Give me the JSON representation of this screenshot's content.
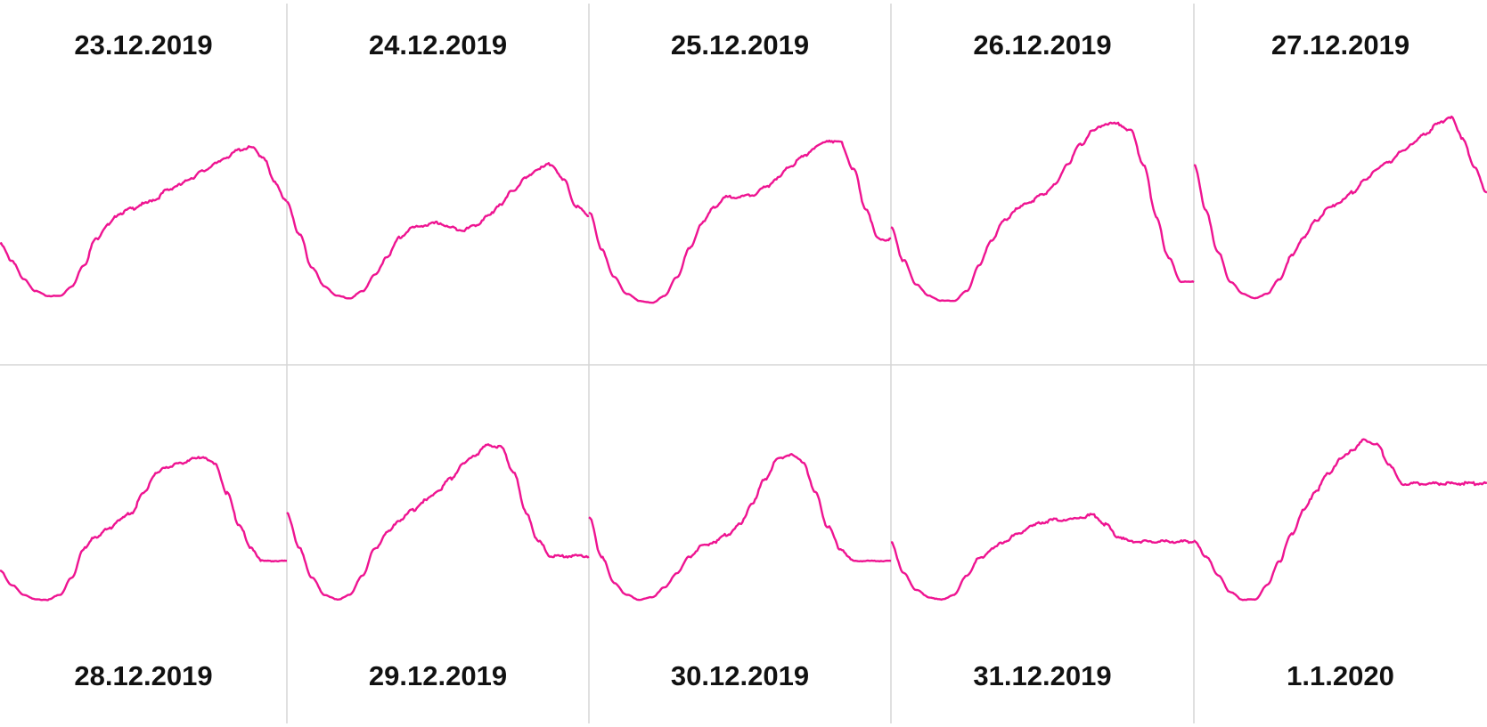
{
  "chart_data": {
    "type": "line",
    "grid": true,
    "color": "#ee1491",
    "panels": [
      {
        "title": "23.12.2019",
        "x": [
          0,
          1,
          2,
          3,
          4,
          5,
          6,
          7,
          8,
          9,
          10,
          11,
          12,
          13,
          14,
          15,
          16,
          17,
          18,
          19,
          20,
          21,
          22,
          23,
          24
        ],
        "values": [
          0.38,
          0.31,
          0.23,
          0.18,
          0.16,
          0.16,
          0.2,
          0.29,
          0.4,
          0.46,
          0.51,
          0.53,
          0.55,
          0.57,
          0.61,
          0.63,
          0.66,
          0.69,
          0.72,
          0.75,
          0.78,
          0.79,
          0.75,
          0.64,
          0.56
        ]
      },
      {
        "title": "24.12.2019",
        "x": [
          0,
          1,
          2,
          3,
          4,
          5,
          6,
          7,
          8,
          9,
          10,
          11,
          12,
          13,
          14,
          15,
          16,
          17,
          18,
          19,
          20,
          21,
          22,
          23,
          24
        ],
        "values": [
          0.56,
          0.42,
          0.28,
          0.2,
          0.16,
          0.15,
          0.18,
          0.25,
          0.33,
          0.41,
          0.45,
          0.46,
          0.47,
          0.45,
          0.44,
          0.46,
          0.5,
          0.55,
          0.61,
          0.66,
          0.7,
          0.72,
          0.65,
          0.54,
          0.5
        ]
      },
      {
        "title": "25.12.2019",
        "x": [
          0,
          1,
          2,
          3,
          4,
          5,
          6,
          7,
          8,
          9,
          10,
          11,
          12,
          13,
          14,
          15,
          16,
          17,
          18,
          19,
          20,
          21,
          22,
          23,
          24
        ],
        "values": [
          0.52,
          0.36,
          0.24,
          0.17,
          0.14,
          0.13,
          0.16,
          0.24,
          0.36,
          0.47,
          0.54,
          0.58,
          0.58,
          0.59,
          0.62,
          0.66,
          0.71,
          0.75,
          0.79,
          0.82,
          0.81,
          0.7,
          0.53,
          0.4,
          0.4
        ]
      },
      {
        "title": "26.12.2019",
        "x": [
          0,
          1,
          2,
          3,
          4,
          5,
          6,
          7,
          8,
          9,
          10,
          11,
          12,
          13,
          14,
          15,
          16,
          17,
          18,
          19,
          20,
          21,
          22,
          23,
          24
        ],
        "values": [
          0.45,
          0.31,
          0.21,
          0.16,
          0.14,
          0.14,
          0.18,
          0.29,
          0.4,
          0.48,
          0.53,
          0.56,
          0.59,
          0.63,
          0.72,
          0.8,
          0.86,
          0.89,
          0.89,
          0.86,
          0.72,
          0.5,
          0.32,
          0.22,
          0.22
        ]
      },
      {
        "title": "27.12.2019",
        "x": [
          0,
          1,
          2,
          3,
          4,
          5,
          6,
          7,
          8,
          9,
          10,
          11,
          12,
          13,
          14,
          15,
          16,
          17,
          18,
          19,
          20,
          21,
          22,
          23,
          24
        ],
        "values": [
          0.72,
          0.52,
          0.34,
          0.22,
          0.17,
          0.15,
          0.17,
          0.23,
          0.33,
          0.41,
          0.48,
          0.53,
          0.56,
          0.6,
          0.65,
          0.7,
          0.73,
          0.77,
          0.81,
          0.85,
          0.89,
          0.92,
          0.83,
          0.7,
          0.6
        ]
      },
      {
        "title": "28.12.2019",
        "x": [
          0,
          1,
          2,
          3,
          4,
          5,
          6,
          7,
          8,
          9,
          10,
          11,
          12,
          13,
          14,
          15,
          16,
          17,
          18,
          19,
          20,
          21,
          22,
          23,
          24
        ],
        "values": [
          0.26,
          0.2,
          0.16,
          0.14,
          0.14,
          0.16,
          0.23,
          0.35,
          0.4,
          0.43,
          0.47,
          0.5,
          0.58,
          0.66,
          0.69,
          0.7,
          0.72,
          0.73,
          0.7,
          0.58,
          0.45,
          0.35,
          0.3,
          0.3,
          0.3
        ]
      },
      {
        "title": "29.12.2019",
        "x": [
          0,
          1,
          2,
          3,
          4,
          5,
          6,
          7,
          8,
          9,
          10,
          11,
          12,
          13,
          14,
          15,
          16,
          17,
          18,
          19,
          20,
          21,
          22,
          23,
          24
        ],
        "values": [
          0.5,
          0.35,
          0.23,
          0.16,
          0.14,
          0.16,
          0.24,
          0.35,
          0.42,
          0.47,
          0.51,
          0.55,
          0.59,
          0.64,
          0.7,
          0.74,
          0.78,
          0.77,
          0.67,
          0.5,
          0.38,
          0.32,
          0.32,
          0.32,
          0.32
        ]
      },
      {
        "title": "30.12.2019",
        "x": [
          0,
          1,
          2,
          3,
          4,
          5,
          6,
          7,
          8,
          9,
          10,
          11,
          12,
          13,
          14,
          15,
          16,
          17,
          18,
          19,
          20,
          21,
          22,
          23,
          24
        ],
        "values": [
          0.48,
          0.32,
          0.21,
          0.16,
          0.14,
          0.15,
          0.19,
          0.25,
          0.32,
          0.36,
          0.38,
          0.41,
          0.45,
          0.54,
          0.64,
          0.72,
          0.74,
          0.71,
          0.58,
          0.44,
          0.35,
          0.3,
          0.3,
          0.3,
          0.3
        ]
      },
      {
        "title": "31.12.2019",
        "x": [
          0,
          1,
          2,
          3,
          4,
          5,
          6,
          7,
          8,
          9,
          10,
          11,
          12,
          13,
          14,
          15,
          16,
          17,
          18,
          19,
          20,
          21,
          22,
          23,
          24
        ],
        "values": [
          0.38,
          0.25,
          0.18,
          0.15,
          0.14,
          0.16,
          0.24,
          0.31,
          0.35,
          0.38,
          0.41,
          0.44,
          0.46,
          0.47,
          0.47,
          0.48,
          0.49,
          0.45,
          0.4,
          0.38,
          0.38,
          0.38,
          0.38,
          0.38,
          0.38
        ]
      },
      {
        "title": "1.1.2020",
        "x": [
          0,
          1,
          2,
          3,
          4,
          5,
          6,
          7,
          8,
          9,
          10,
          11,
          12,
          13,
          14,
          15,
          16,
          17,
          18,
          19,
          20,
          21,
          22,
          23,
          24
        ],
        "values": [
          0.38,
          0.32,
          0.24,
          0.17,
          0.14,
          0.14,
          0.2,
          0.3,
          0.41,
          0.51,
          0.59,
          0.66,
          0.72,
          0.76,
          0.8,
          0.78,
          0.7,
          0.62,
          0.62,
          0.62,
          0.62,
          0.62,
          0.62,
          0.62,
          0.62
        ]
      }
    ]
  }
}
